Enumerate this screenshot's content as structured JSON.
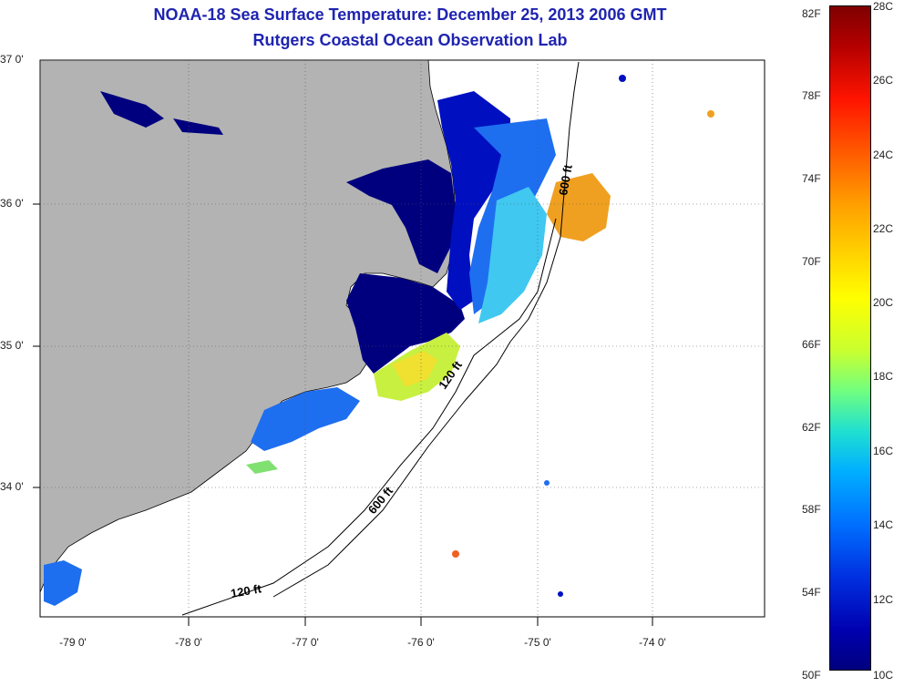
{
  "title": {
    "line1": "NOAA-18 Sea Surface Temperature:  December 25, 2013 2006 GMT",
    "line2": "Rutgers Coastal Ocean Observation Lab"
  },
  "map": {
    "lat_labels": [
      "37 0'",
      "36 0'",
      "35 0'",
      "34 0'"
    ],
    "lon_labels": [
      "-79 0'",
      "-78 0'",
      "-77 0'",
      "-76 0'",
      "-75 0'",
      "-74 0'"
    ],
    "contour_labels": [
      "600 ft",
      "120 ft",
      "600 ft",
      "120 ft"
    ],
    "colors": {
      "land": "#b3b3b3",
      "water": "#ffffff"
    }
  },
  "colorbar": {
    "fahrenheit": [
      "82F",
      "78F",
      "74F",
      "70F",
      "66F",
      "62F",
      "58F",
      "54F",
      "50F"
    ],
    "celsius": [
      "28C",
      "26C",
      "24C",
      "22C",
      "20C",
      "18C",
      "16C",
      "14C",
      "12C",
      "10C"
    ],
    "range_c": [
      10,
      28
    ],
    "range_f": [
      50,
      82
    ]
  }
}
